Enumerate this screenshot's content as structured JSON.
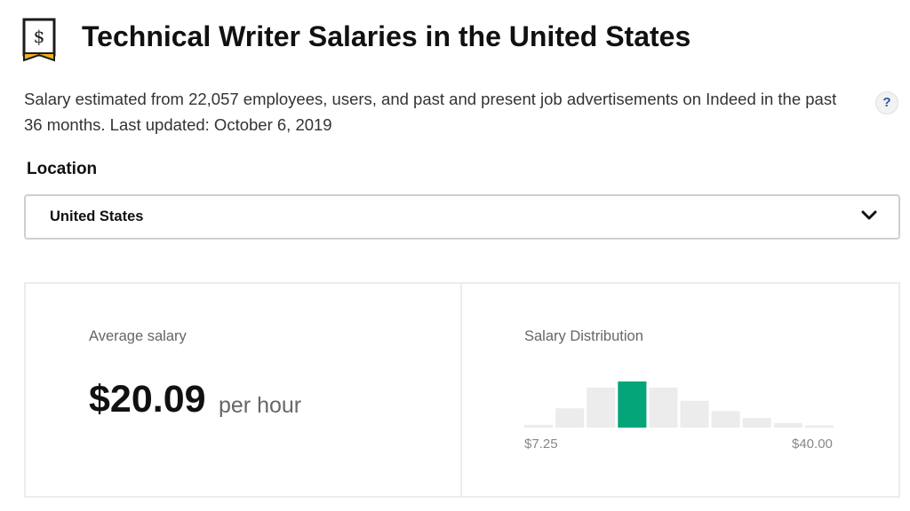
{
  "header": {
    "title": "Technical Writer Salaries in the United States",
    "logo_icon": "salary-tag-icon",
    "subtitle": "Salary estimated from 22,057 employees, users, and past and present job advertisements on Indeed in the past 36 months. Last updated: October 6, 2019",
    "help_label": "?"
  },
  "location": {
    "label": "Location",
    "selected": "United States",
    "icon": "chevron-down-icon"
  },
  "salary": {
    "average_label": "Average salary",
    "average_value": "$20.09",
    "unit": "per hour"
  },
  "distribution": {
    "label": "Salary Distribution",
    "min_label": "$7.25",
    "max_label": "$40.00"
  },
  "chart_data": {
    "type": "bar",
    "title": "Salary Distribution",
    "x_range_labels": [
      "$7.25",
      "$40.00"
    ],
    "relative_counts": [
      0.06,
      0.42,
      0.87,
      1.0,
      0.87,
      0.58,
      0.36,
      0.21,
      0.1,
      0.05
    ],
    "highlighted_index": 3,
    "colors": {
      "bar": "#ececec",
      "highlight": "#05a57a"
    }
  },
  "colors": {
    "text": "#2d2d2d",
    "muted": "#666666",
    "accent": "#05a57a",
    "link": "#2557a7",
    "logo_yellow": "#f3b21a"
  }
}
